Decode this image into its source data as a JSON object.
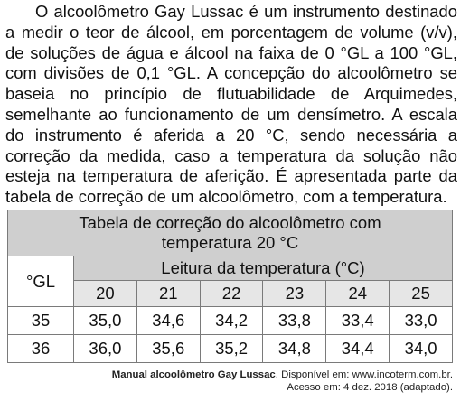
{
  "paragraph": "O alcoolômetro Gay Lussac é um instrumento destinado a medir o teor de álcool, em porcentagem de volume (v/v), de soluções de água e álcool na faixa de 0 °GL a 100 °GL, com divisões de 0,1 °GL. A concepção do alcoolômetro se baseia no princípio de flutuabilidade de Arquimedes, semelhante ao funcionamento de um densímetro. A escala do instrumento é aferida a 20 °C, sendo necessária a correção da medida, caso a temperatura da solução não esteja na temperatura de aferição. É apresentada parte da tabela de correção de um alcoolômetro, com a temperatura.",
  "table": {
    "title_line1": "Tabela de correção do alcoolômetro com",
    "title_line2": "temperatura 20 °C",
    "row_header": "°GL",
    "temp_header": "Leitura da temperatura (°C)",
    "temperatures": [
      "20",
      "21",
      "22",
      "23",
      "24",
      "25"
    ],
    "rows": [
      {
        "gl": "35",
        "values": [
          "35,0",
          "34,6",
          "34,2",
          "33,8",
          "33,4",
          "33,0"
        ]
      },
      {
        "gl": "36",
        "values": [
          "36,0",
          "35,6",
          "35,2",
          "34,8",
          "34,4",
          "34,0"
        ]
      }
    ]
  },
  "source": {
    "bold": "Manual alcoolômetro Gay Lussac",
    "rest": ". Disponível em: www.incoterm.com.br.",
    "line2": "Acesso em: 4 dez. 2018 (adaptado)."
  }
}
